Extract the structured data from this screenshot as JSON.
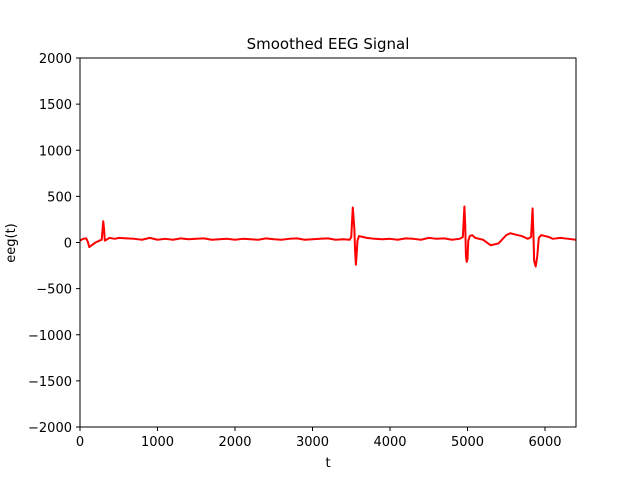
{
  "chart_data": {
    "type": "line",
    "title": "Smoothed EEG Signal",
    "xlabel": "t",
    "ylabel": "eeg(t)",
    "xlim": [
      0,
      6400
    ],
    "ylim": [
      -2000,
      2000
    ],
    "xticks": [
      0,
      1000,
      2000,
      3000,
      4000,
      5000,
      6000
    ],
    "yticks": [
      -2000,
      -1500,
      -1000,
      -500,
      0,
      500,
      1000,
      1500,
      2000
    ],
    "grid": false,
    "legend": "none",
    "series": [
      {
        "color": "#ff0000",
        "x": [
          0,
          40,
          80,
          100,
          120,
          150,
          200,
          250,
          280,
          300,
          310,
          320,
          340,
          380,
          450,
          500,
          600,
          700,
          800,
          900,
          1000,
          1100,
          1200,
          1300,
          1400,
          1500,
          1600,
          1700,
          1800,
          1900,
          2000,
          2100,
          2200,
          2300,
          2400,
          2500,
          2600,
          2700,
          2800,
          2900,
          3000,
          3100,
          3200,
          3300,
          3400,
          3480,
          3500,
          3520,
          3540,
          3550,
          3560,
          3570,
          3580,
          3600,
          3650,
          3700,
          3800,
          3900,
          4000,
          4100,
          4200,
          4300,
          4400,
          4500,
          4600,
          4700,
          4800,
          4900,
          4940,
          4960,
          4970,
          4980,
          4990,
          5000,
          5010,
          5030,
          5060,
          5100,
          5150,
          5200,
          5300,
          5400,
          5500,
          5550,
          5600,
          5700,
          5780,
          5820,
          5840,
          5850,
          5860,
          5880,
          5900,
          5920,
          5950,
          6000,
          6050,
          6100,
          6200,
          6300,
          6400
        ],
        "y": [
          20,
          40,
          45,
          10,
          -50,
          -30,
          0,
          20,
          30,
          230,
          150,
          20,
          30,
          50,
          40,
          50,
          45,
          40,
          30,
          50,
          30,
          40,
          30,
          45,
          35,
          40,
          45,
          30,
          35,
          40,
          30,
          40,
          35,
          30,
          45,
          35,
          30,
          40,
          45,
          30,
          35,
          40,
          45,
          30,
          35,
          30,
          60,
          380,
          150,
          -100,
          -240,
          -120,
          20,
          70,
          60,
          50,
          40,
          35,
          40,
          30,
          45,
          40,
          30,
          50,
          40,
          45,
          30,
          40,
          60,
          390,
          200,
          -150,
          -210,
          -180,
          20,
          70,
          80,
          50,
          40,
          30,
          -30,
          -10,
          80,
          100,
          90,
          70,
          40,
          60,
          370,
          100,
          -200,
          -260,
          -150,
          50,
          80,
          70,
          60,
          40,
          50,
          40,
          30
        ]
      }
    ]
  }
}
